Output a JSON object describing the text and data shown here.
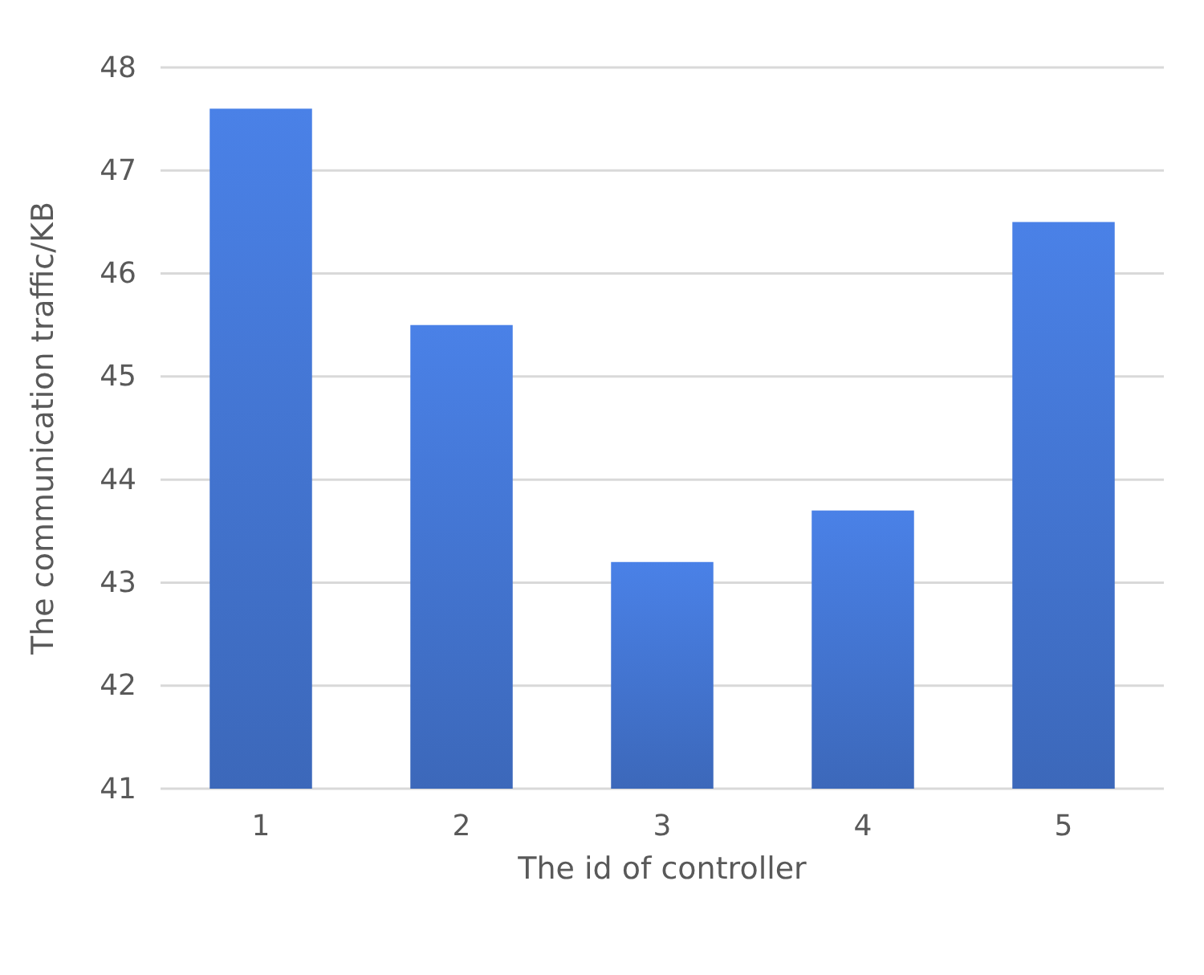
{
  "chart_data": {
    "type": "bar",
    "xlabel": "The id of controller",
    "ylabel": "The communication traffic/KB",
    "categories": [
      "1",
      "2",
      "3",
      "4",
      "5"
    ],
    "values": [
      47.6,
      45.5,
      43.2,
      43.7,
      46.5
    ],
    "color": "#4070c8",
    "ylim": [
      41,
      48
    ],
    "yticks": [
      41,
      42,
      43,
      44,
      45,
      46,
      47,
      48
    ],
    "grid": "y"
  }
}
